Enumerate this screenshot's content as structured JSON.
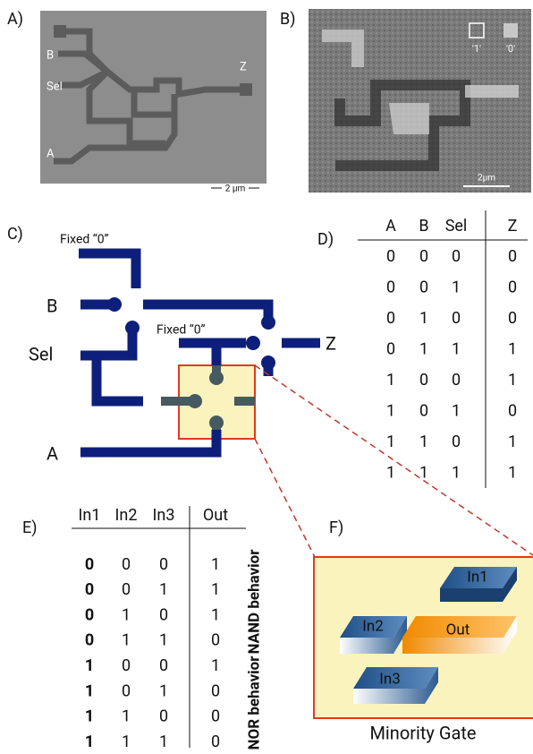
{
  "panels": {
    "a": {
      "label": "A)",
      "annotations": [
        "B",
        "Sel",
        "A",
        "Z"
      ],
      "scale_bar": "2 µm"
    },
    "b": {
      "label": "B)",
      "legend": [
        "'1'",
        "'0'"
      ],
      "scale_bar": "2µm"
    },
    "c": {
      "label": "C)",
      "fixed_labels": [
        "Fixed “0”",
        "Fixed “0”"
      ],
      "inputs": [
        "B",
        "Sel",
        "A"
      ],
      "output": "Z"
    },
    "d": {
      "label": "D)",
      "header": [
        "A",
        "B",
        "Sel",
        "Z"
      ],
      "rows": [
        [
          0,
          0,
          0,
          0
        ],
        [
          0,
          0,
          1,
          0
        ],
        [
          0,
          1,
          0,
          0
        ],
        [
          0,
          1,
          1,
          1
        ],
        [
          1,
          0,
          0,
          1
        ],
        [
          1,
          0,
          1,
          0
        ],
        [
          1,
          1,
          0,
          1
        ],
        [
          1,
          1,
          1,
          1
        ]
      ]
    },
    "e": {
      "label": "E)",
      "header": [
        "In1",
        "In2",
        "In3",
        "Out"
      ],
      "rows": [
        [
          0,
          0,
          0,
          1
        ],
        [
          0,
          0,
          1,
          1
        ],
        [
          0,
          1,
          0,
          1
        ],
        [
          0,
          1,
          1,
          0
        ],
        [
          1,
          0,
          0,
          1
        ],
        [
          1,
          0,
          1,
          0
        ],
        [
          1,
          1,
          0,
          0
        ],
        [
          1,
          1,
          1,
          0
        ]
      ],
      "groups": [
        "NAND behavior",
        "NOR behavior"
      ]
    },
    "f": {
      "label": "F)",
      "blocks": [
        "In1",
        "In2",
        "Out",
        "In3"
      ],
      "caption": "Minority Gate"
    }
  }
}
